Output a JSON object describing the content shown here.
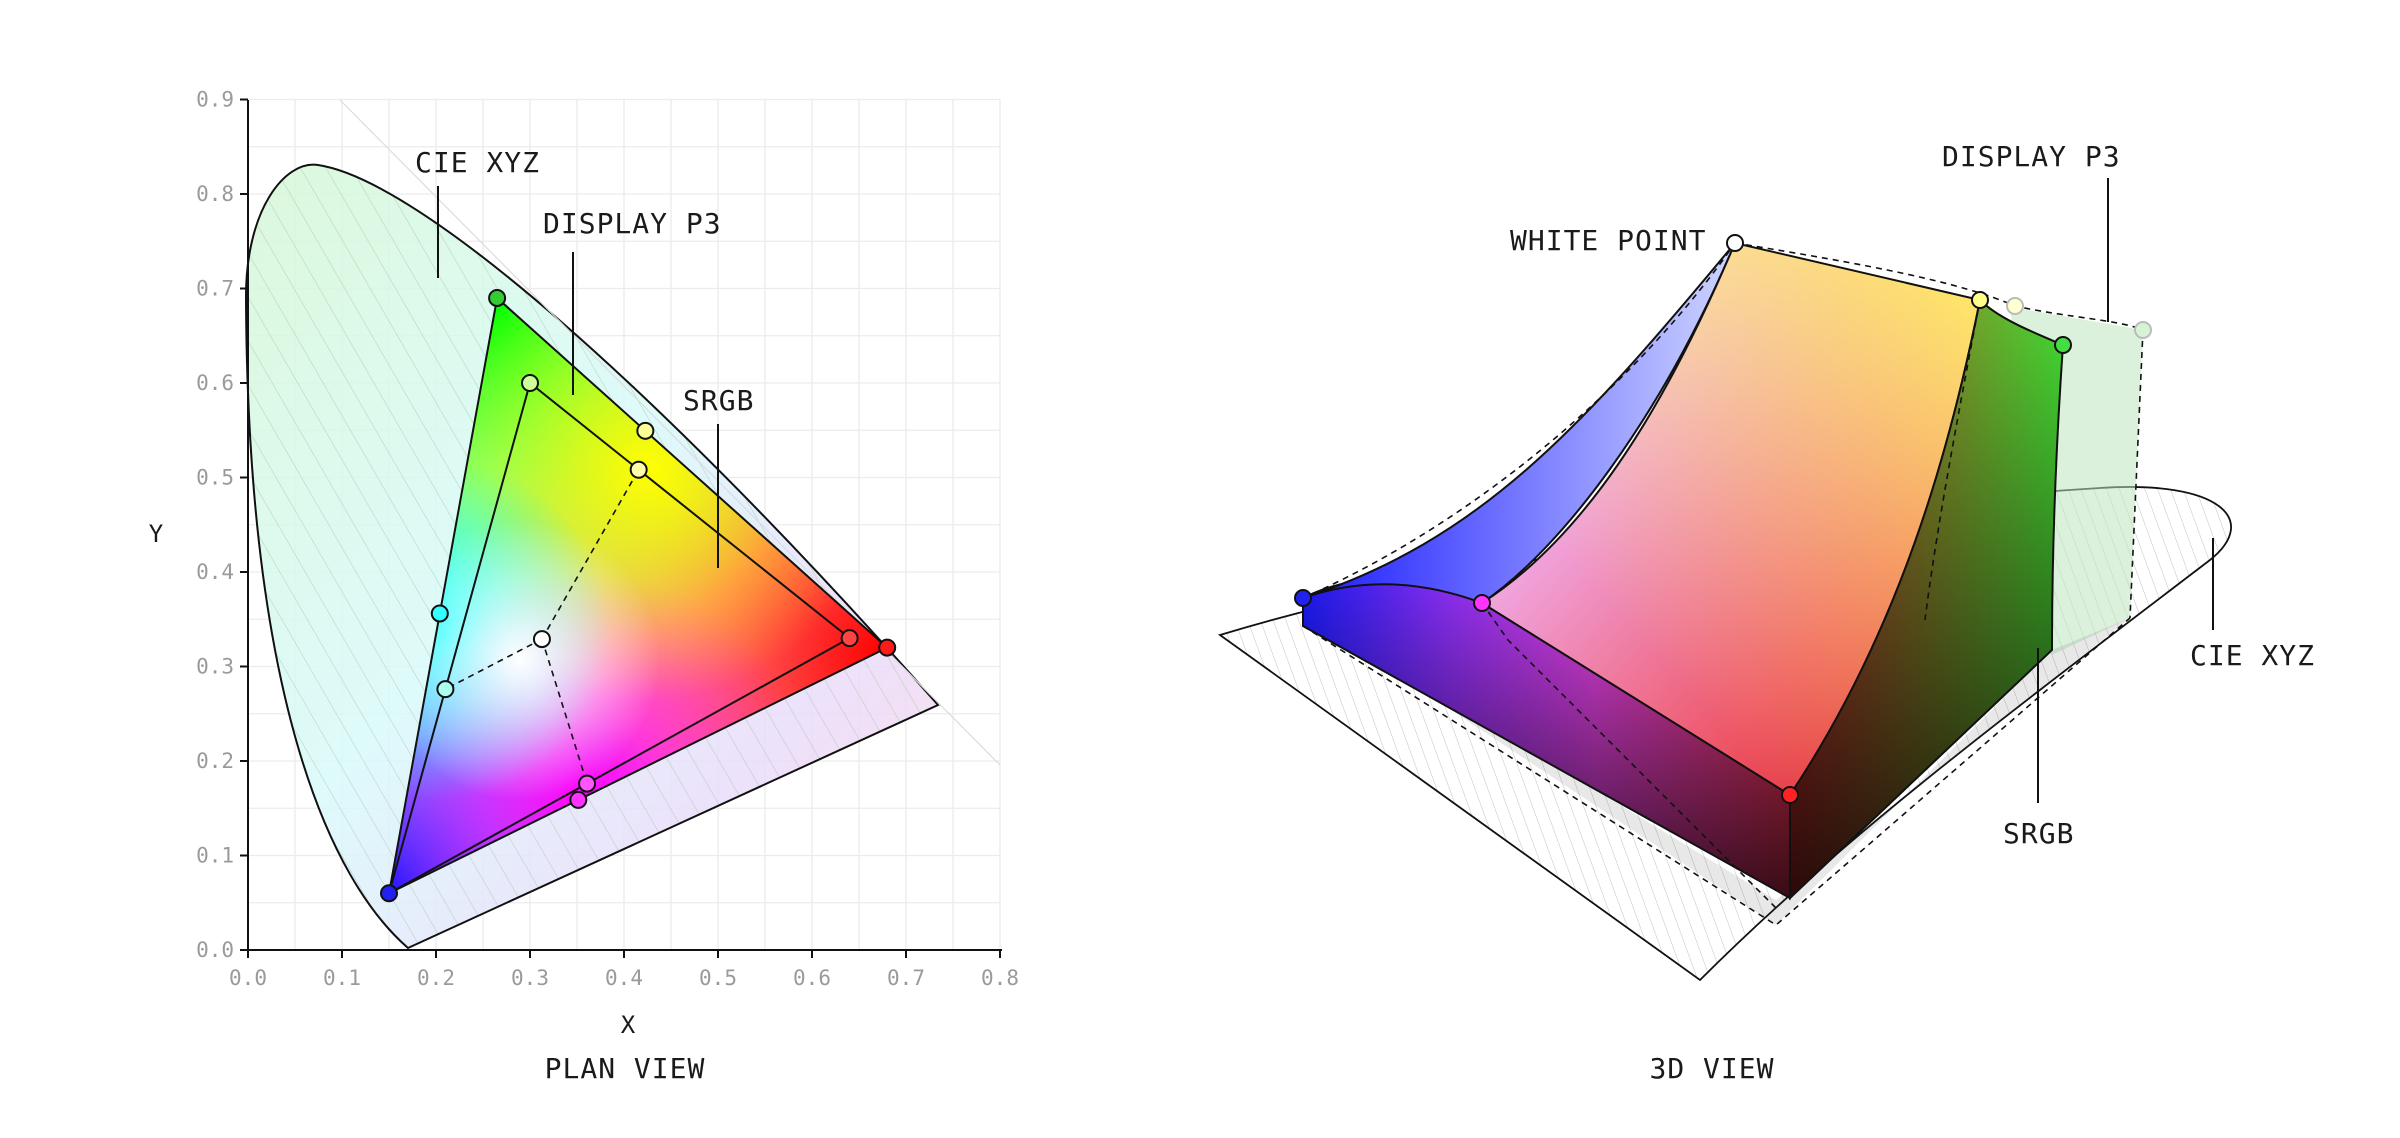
{
  "plan_view": {
    "caption": "PLAN VIEW",
    "x_label": "X",
    "y_label": "Y",
    "x_ticks": [
      "0.0",
      "0.1",
      "0.2",
      "0.3",
      "0.4",
      "0.5",
      "0.6",
      "0.7",
      "0.8"
    ],
    "y_ticks": [
      "0.0",
      "0.1",
      "0.2",
      "0.3",
      "0.4",
      "0.5",
      "0.6",
      "0.7",
      "0.8",
      "0.9"
    ],
    "xlim": [
      0,
      0.8
    ],
    "ylim": [
      0,
      0.9
    ],
    "grid": true,
    "labels": {
      "cie": "CIE XYZ",
      "p3": "DISPLAY P3",
      "srgb": "SRGB"
    },
    "gamuts": {
      "display_p3": {
        "red": {
          "x": 0.68,
          "y": 0.32
        },
        "green": {
          "x": 0.265,
          "y": 0.69
        },
        "blue": {
          "x": 0.15,
          "y": 0.06
        }
      },
      "srgb": {
        "red": {
          "x": 0.64,
          "y": 0.33
        },
        "green": {
          "x": 0.3,
          "y": 0.6
        },
        "blue": {
          "x": 0.15,
          "y": 0.06
        }
      },
      "white_point": {
        "x": 0.3127,
        "y": 0.329
      }
    }
  },
  "view_3d": {
    "caption": "3D VIEW",
    "labels": {
      "white": "WHITE POINT",
      "p3": "DISPLAY P3",
      "cie": "CIE XYZ",
      "srgb": "SRGB"
    }
  },
  "colors": {
    "p3_red": "#ff1a1a",
    "p3_green": "#33cc33",
    "p3_blue": "#2222ee",
    "srgb_yellow": "#ffff66",
    "magenta": "#ff33ff",
    "cyan": "#33ffff"
  }
}
